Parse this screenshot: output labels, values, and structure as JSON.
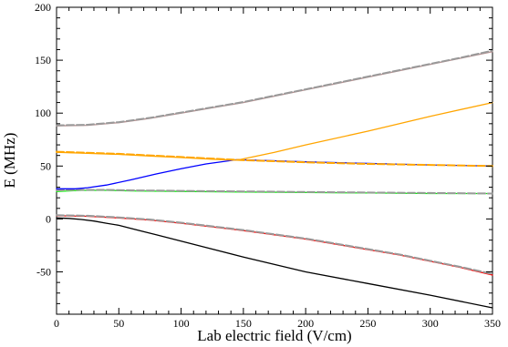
{
  "chart_data": {
    "type": "line",
    "title": "",
    "xlabel": "Lab electric field (V/cm)",
    "ylabel": "E (MHz)",
    "xlim": [
      0,
      350
    ],
    "ylim": [
      -90,
      200
    ],
    "xticks": [
      0,
      50,
      100,
      150,
      200,
      250,
      300,
      350
    ],
    "yticks": [
      -50,
      0,
      50,
      100,
      150,
      200
    ],
    "grid": false,
    "legend": "none",
    "series": [
      {
        "color": "#000000",
        "style": "solid",
        "x": [
          0,
          10,
          20,
          30,
          40,
          50,
          60,
          80,
          100,
          120,
          150,
          200,
          250,
          300,
          350
        ],
        "y": [
          1,
          0.5,
          -0.5,
          -2,
          -4,
          -6,
          -9,
          -15,
          -21,
          -27,
          -36,
          -50,
          -61,
          -72,
          -84
        ]
      },
      {
        "color": "#ff0000",
        "style": "solid",
        "x": [
          0,
          25,
          50,
          75,
          100,
          125,
          150,
          175,
          200,
          225,
          250,
          275,
          300,
          325,
          350
        ],
        "y": [
          3,
          2.5,
          1,
          -1,
          -4,
          -7.5,
          -11,
          -15,
          -19,
          -24,
          -29,
          -34,
          -40,
          -46,
          -53
        ]
      },
      {
        "color": "#999999",
        "style": "dashed",
        "x": [
          0,
          25,
          50,
          75,
          100,
          125,
          150,
          175,
          200,
          225,
          250,
          275,
          300,
          325,
          350
        ],
        "y": [
          3.5,
          3,
          1.5,
          -0.5,
          -3.5,
          -7,
          -10.5,
          -14.5,
          -18.5,
          -23.5,
          -28.5,
          -33.5,
          -39.5,
          -45.5,
          -52
        ]
      },
      {
        "color": "#00ff00",
        "style": "solid",
        "x": [
          0,
          20,
          40,
          60,
          100,
          150,
          200,
          250,
          300,
          350
        ],
        "y": [
          26,
          27,
          27,
          26.5,
          26,
          25.5,
          25,
          24.5,
          24,
          24
        ]
      },
      {
        "color": "#999999",
        "style": "dashed",
        "x": [
          0,
          20,
          40,
          60,
          100,
          150,
          200,
          250,
          300,
          350
        ],
        "y": [
          27,
          27.5,
          27.5,
          27,
          26.5,
          26,
          25.5,
          25,
          24.5,
          24
        ]
      },
      {
        "color": "#0000ff",
        "style": "solid",
        "x": [
          0,
          15,
          25,
          40,
          60,
          80,
          100,
          120,
          145,
          175,
          200,
          250,
          300,
          350
        ],
        "y": [
          28.5,
          28.5,
          29.5,
          32,
          37,
          42.5,
          47.5,
          52,
          56,
          55,
          54,
          52.5,
          51,
          50
        ]
      },
      {
        "color": "#ffa500",
        "style": "solid",
        "x": [
          0,
          25,
          50,
          75,
          100,
          125,
          145,
          175,
          200,
          250,
          300,
          350
        ],
        "y": [
          63,
          62,
          61,
          59.5,
          58,
          56.5,
          55.5,
          63,
          70,
          83,
          97,
          110
        ]
      },
      {
        "color": "#ffa500",
        "style": "dashed",
        "x": [
          0,
          50,
          100,
          150,
          200,
          250,
          300,
          350
        ],
        "y": [
          63.5,
          61.5,
          58.5,
          55.5,
          53.5,
          52,
          51,
          50
        ]
      },
      {
        "color": "#bc8f8f",
        "style": "solid",
        "x": [
          0,
          25,
          50,
          75,
          100,
          125,
          150,
          175,
          200,
          225,
          250,
          275,
          300,
          325,
          350
        ],
        "y": [
          88,
          88.5,
          91,
          95,
          100,
          105,
          110,
          116,
          122,
          128,
          134,
          140,
          146,
          152,
          158
        ]
      },
      {
        "color": "#999999",
        "style": "dashed",
        "x": [
          0,
          25,
          50,
          75,
          100,
          125,
          150,
          175,
          200,
          225,
          250,
          275,
          300,
          325,
          350
        ],
        "y": [
          88.5,
          89,
          91.5,
          95.5,
          100.5,
          105.5,
          110.5,
          116.5,
          122.5,
          128.5,
          134.5,
          140.5,
          146.5,
          152.5,
          159
        ]
      }
    ]
  }
}
